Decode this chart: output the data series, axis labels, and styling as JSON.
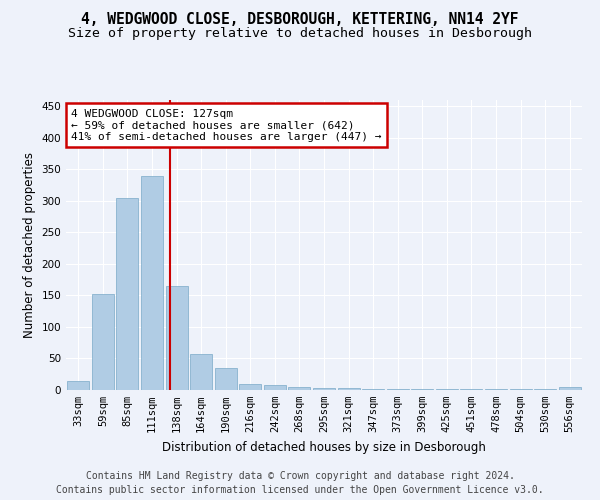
{
  "title_line1": "4, WEDGWOOD CLOSE, DESBOROUGH, KETTERING, NN14 2YF",
  "title_line2": "Size of property relative to detached houses in Desborough",
  "xlabel": "Distribution of detached houses by size in Desborough",
  "ylabel": "Number of detached properties",
  "categories": [
    "33sqm",
    "59sqm",
    "85sqm",
    "111sqm",
    "138sqm",
    "164sqm",
    "190sqm",
    "216sqm",
    "242sqm",
    "268sqm",
    "295sqm",
    "321sqm",
    "347sqm",
    "373sqm",
    "399sqm",
    "425sqm",
    "451sqm",
    "478sqm",
    "504sqm",
    "530sqm",
    "556sqm"
  ],
  "values": [
    15,
    153,
    305,
    340,
    165,
    57,
    35,
    10,
    8,
    5,
    3,
    3,
    2,
    2,
    1,
    1,
    1,
    1,
    1,
    1,
    4
  ],
  "bar_color": "#b0cce4",
  "bar_edge_color": "#7aaac8",
  "background_color": "#eef2fa",
  "grid_color": "#ffffff",
  "annotation_line1": "4 WEDGWOOD CLOSE: 127sqm",
  "annotation_line2": "← 59% of detached houses are smaller (642)",
  "annotation_line3": "41% of semi-detached houses are larger (447) →",
  "annotation_box_color": "#ffffff",
  "annotation_box_edge_color": "#cc0000",
  "vline_x": 3.73,
  "vline_color": "#cc0000",
  "ylim": [
    0,
    460
  ],
  "yticks": [
    0,
    50,
    100,
    150,
    200,
    250,
    300,
    350,
    400,
    450
  ],
  "footer_line1": "Contains HM Land Registry data © Crown copyright and database right 2024.",
  "footer_line2": "Contains public sector information licensed under the Open Government Licence v3.0.",
  "title_fontsize": 10.5,
  "subtitle_fontsize": 9.5,
  "axis_label_fontsize": 8.5,
  "tick_fontsize": 7.5,
  "footer_fontsize": 7,
  "annotation_fontsize": 8
}
